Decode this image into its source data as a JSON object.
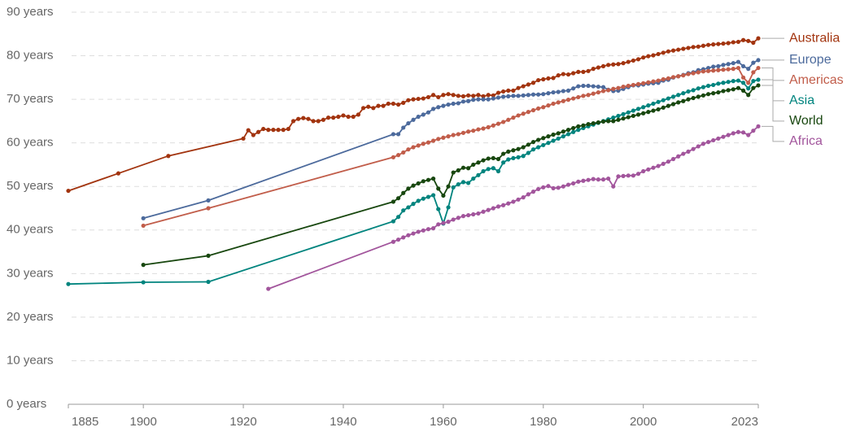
{
  "chart_data": {
    "type": "line",
    "xlim": [
      1885,
      2023
    ],
    "xticks": [
      1885,
      1900,
      1920,
      1940,
      1960,
      1980,
      2000,
      2023
    ],
    "ylim": [
      0,
      90
    ],
    "yticks": [
      {
        "value": 0,
        "label": "0 years"
      },
      {
        "value": 10,
        "label": "10 years"
      },
      {
        "value": 20,
        "label": "20 years"
      },
      {
        "value": 30,
        "label": "30 years"
      },
      {
        "value": 40,
        "label": "40 years"
      },
      {
        "value": 50,
        "label": "50 years"
      },
      {
        "value": 60,
        "label": "60 years"
      },
      {
        "value": 70,
        "label": "70 years"
      },
      {
        "value": 80,
        "label": "80 years"
      },
      {
        "value": 90,
        "label": "90 years"
      }
    ],
    "grid": true,
    "series": [
      {
        "name": "Australia",
        "color": "#a2340f",
        "x": [
          1885,
          1895,
          1905,
          1920,
          1921,
          1922,
          1923,
          1924,
          1925,
          1926,
          1927,
          1928,
          1929,
          1930,
          1931,
          1932,
          1933,
          1934,
          1935,
          1936,
          1937,
          1938,
          1939,
          1940,
          1941,
          1942,
          1943,
          1944,
          1945,
          1946,
          1947,
          1948,
          1949,
          1950,
          1951,
          1952,
          1953,
          1954,
          1955,
          1956,
          1957,
          1958,
          1959,
          1960,
          1961,
          1962,
          1963,
          1964,
          1965,
          1966,
          1967,
          1968,
          1969,
          1970,
          1971,
          1972,
          1973,
          1974,
          1975,
          1976,
          1977,
          1978,
          1979,
          1980,
          1981,
          1982,
          1983,
          1984,
          1985,
          1986,
          1987,
          1988,
          1989,
          1990,
          1991,
          1992,
          1993,
          1994,
          1995,
          1996,
          1997,
          1998,
          1999,
          2000,
          2001,
          2002,
          2003,
          2004,
          2005,
          2006,
          2007,
          2008,
          2009,
          2010,
          2011,
          2012,
          2013,
          2014,
          2015,
          2016,
          2017,
          2018,
          2019,
          2020,
          2021,
          2022,
          2023
        ],
        "values": [
          49,
          53,
          57,
          61,
          62.9,
          61.8,
          62.5,
          63.2,
          63,
          63,
          63,
          63,
          63.2,
          65,
          65.5,
          65.7,
          65.5,
          65,
          65,
          65.3,
          65.8,
          65.8,
          66,
          66.3,
          66,
          66,
          66.5,
          68,
          68.3,
          68,
          68.5,
          68.5,
          69,
          69,
          68.8,
          69.2,
          69.8,
          70,
          70.1,
          70.2,
          70.5,
          71,
          70.5,
          71,
          71.2,
          71,
          70.8,
          70.7,
          70.9,
          70.8,
          71,
          70.7,
          71,
          70.9,
          71.5,
          71.8,
          72,
          72,
          72.6,
          73,
          73.4,
          73.8,
          74.4,
          74.6,
          74.8,
          74.9,
          75.5,
          75.8,
          75.7,
          76,
          76.3,
          76.3,
          76.5,
          77,
          77.3,
          77.6,
          77.9,
          78,
          78.1,
          78.3,
          78.6,
          78.9,
          79.2,
          79.6,
          79.9,
          80.1,
          80.4,
          80.7,
          81,
          81.2,
          81.4,
          81.6,
          81.8,
          82,
          82.1,
          82.3,
          82.5,
          82.6,
          82.7,
          82.8,
          82.9,
          83.1,
          83.2,
          83.6,
          83.4,
          83,
          84
        ]
      },
      {
        "name": "Europe",
        "color": "#4c6a9c",
        "x": [
          1900,
          1913,
          1950,
          1951,
          1952,
          1953,
          1954,
          1955,
          1956,
          1957,
          1958,
          1959,
          1960,
          1961,
          1962,
          1963,
          1964,
          1965,
          1966,
          1967,
          1968,
          1969,
          1970,
          1971,
          1972,
          1973,
          1974,
          1975,
          1976,
          1977,
          1978,
          1979,
          1980,
          1981,
          1982,
          1983,
          1984,
          1985,
          1986,
          1987,
          1988,
          1989,
          1990,
          1991,
          1992,
          1993,
          1994,
          1995,
          1996,
          1997,
          1998,
          1999,
          2000,
          2001,
          2002,
          2003,
          2004,
          2005,
          2006,
          2007,
          2008,
          2009,
          2010,
          2011,
          2012,
          2013,
          2014,
          2015,
          2016,
          2017,
          2018,
          2019,
          2020,
          2021,
          2022,
          2023
        ],
        "values": [
          42.7,
          46.8,
          62,
          62,
          63.5,
          64.5,
          65.3,
          66,
          66.5,
          67,
          67.8,
          68.2,
          68.5,
          68.8,
          69,
          69.1,
          69.5,
          69.6,
          69.9,
          70,
          70,
          70,
          70.2,
          70.4,
          70.6,
          70.7,
          70.8,
          70.8,
          70.9,
          71,
          71.1,
          71.1,
          71.2,
          71.4,
          71.6,
          71.7,
          71.9,
          72,
          72.5,
          73,
          73.1,
          73.1,
          73,
          72.9,
          72.8,
          72.2,
          71.9,
          72,
          72.4,
          72.8,
          73.2,
          73.2,
          73.4,
          73.6,
          73.7,
          73.8,
          74.3,
          74.5,
          75,
          75.3,
          75.6,
          76,
          76.2,
          76.7,
          76.9,
          77.2,
          77.5,
          77.6,
          77.9,
          78.1,
          78.3,
          78.6,
          77.6,
          77,
          78.4,
          79
        ]
      },
      {
        "name": "Americas",
        "color": "#c15d4a",
        "x": [
          1900,
          1913,
          1950,
          1951,
          1952,
          1953,
          1954,
          1955,
          1956,
          1957,
          1958,
          1959,
          1960,
          1961,
          1962,
          1963,
          1964,
          1965,
          1966,
          1967,
          1968,
          1969,
          1970,
          1971,
          1972,
          1973,
          1974,
          1975,
          1976,
          1977,
          1978,
          1979,
          1980,
          1981,
          1982,
          1983,
          1984,
          1985,
          1986,
          1987,
          1988,
          1989,
          1990,
          1991,
          1992,
          1993,
          1994,
          1995,
          1996,
          1997,
          1998,
          1999,
          2000,
          2001,
          2002,
          2003,
          2004,
          2005,
          2006,
          2007,
          2008,
          2009,
          2010,
          2011,
          2012,
          2013,
          2014,
          2015,
          2016,
          2017,
          2018,
          2019,
          2020,
          2021,
          2022,
          2023
        ],
        "values": [
          41,
          45,
          56.7,
          57.2,
          57.8,
          58.5,
          59,
          59.4,
          59.8,
          60.1,
          60.5,
          60.9,
          61.2,
          61.5,
          61.8,
          62,
          62.3,
          62.6,
          62.8,
          63.1,
          63.3,
          63.6,
          64,
          64.4,
          64.8,
          65.3,
          65.8,
          66.3,
          66.7,
          67.1,
          67.5,
          67.9,
          68.2,
          68.6,
          69,
          69.3,
          69.6,
          69.9,
          70.2,
          70.5,
          70.8,
          71,
          71.3,
          71.6,
          71.9,
          72.1,
          72.4,
          72.6,
          72.9,
          73.1,
          73.3,
          73.5,
          73.7,
          73.9,
          74.1,
          74.3,
          74.6,
          74.8,
          75.1,
          75.3,
          75.5,
          75.8,
          76,
          76.2,
          76.4,
          76.5,
          76.6,
          76.7,
          76.8,
          76.9,
          77,
          77.2,
          75,
          73.8,
          76.2,
          77.2
        ]
      },
      {
        "name": "Asia",
        "color": "#00847e",
        "x": [
          1885,
          1900,
          1913,
          1950,
          1951,
          1952,
          1953,
          1954,
          1955,
          1956,
          1957,
          1958,
          1959,
          1960,
          1961,
          1962,
          1963,
          1964,
          1965,
          1966,
          1967,
          1968,
          1969,
          1970,
          1971,
          1972,
          1973,
          1974,
          1975,
          1976,
          1977,
          1978,
          1979,
          1980,
          1981,
          1982,
          1983,
          1984,
          1985,
          1986,
          1987,
          1988,
          1989,
          1990,
          1991,
          1992,
          1993,
          1994,
          1995,
          1996,
          1997,
          1998,
          1999,
          2000,
          2001,
          2002,
          2003,
          2004,
          2005,
          2006,
          2007,
          2008,
          2009,
          2010,
          2011,
          2012,
          2013,
          2014,
          2015,
          2016,
          2017,
          2018,
          2019,
          2020,
          2021,
          2022,
          2023
        ],
        "values": [
          27.6,
          28,
          28.1,
          42,
          43,
          44.5,
          45.2,
          46,
          46.7,
          47.2,
          47.6,
          48,
          44.8,
          41.5,
          45.2,
          49.8,
          50.5,
          51,
          50.8,
          51.8,
          52.6,
          53.5,
          54,
          54.2,
          53.5,
          55.5,
          56.2,
          56.5,
          56.7,
          57,
          57.7,
          58.5,
          59,
          59.5,
          60,
          60.5,
          61,
          61.5,
          62,
          62.5,
          63,
          63.4,
          63.8,
          64.2,
          64.6,
          65,
          65.4,
          65.8,
          66.2,
          66.6,
          67,
          67.4,
          67.8,
          68.2,
          68.6,
          69,
          69.4,
          69.8,
          70.2,
          70.6,
          71,
          71.4,
          71.8,
          72.1,
          72.5,
          72.8,
          73.1,
          73.3,
          73.6,
          73.8,
          74,
          74.2,
          74.3,
          73.8,
          72.5,
          74.2,
          74.5
        ]
      },
      {
        "name": "World",
        "color": "#18470f",
        "x": [
          1900,
          1913,
          1950,
          1951,
          1952,
          1953,
          1954,
          1955,
          1956,
          1957,
          1958,
          1959,
          1960,
          1961,
          1962,
          1963,
          1964,
          1965,
          1966,
          1967,
          1968,
          1969,
          1970,
          1971,
          1972,
          1973,
          1974,
          1975,
          1976,
          1977,
          1978,
          1979,
          1980,
          1981,
          1982,
          1983,
          1984,
          1985,
          1986,
          1987,
          1988,
          1989,
          1990,
          1991,
          1992,
          1993,
          1994,
          1995,
          1996,
          1997,
          1998,
          1999,
          2000,
          2001,
          2002,
          2003,
          2004,
          2005,
          2006,
          2007,
          2008,
          2009,
          2010,
          2011,
          2012,
          2013,
          2014,
          2015,
          2016,
          2017,
          2018,
          2019,
          2020,
          2021,
          2022,
          2023
        ],
        "values": [
          32,
          34.1,
          46.5,
          47.3,
          48.5,
          49.5,
          50.2,
          50.7,
          51.2,
          51.5,
          51.8,
          49.5,
          47.9,
          50,
          53.2,
          53.7,
          54.3,
          54.2,
          55,
          55.5,
          56,
          56.4,
          56.5,
          56.3,
          57.5,
          58,
          58.3,
          58.6,
          59,
          59.6,
          60.2,
          60.7,
          61.1,
          61.5,
          61.9,
          62.2,
          62.6,
          63,
          63.4,
          63.8,
          64,
          64.3,
          64.5,
          64.7,
          64.9,
          65,
          65,
          65.3,
          65.6,
          65.9,
          66.2,
          66.5,
          66.8,
          67.1,
          67.4,
          67.7,
          68.1,
          68.5,
          68.9,
          69.3,
          69.6,
          70,
          70.3,
          70.6,
          70.9,
          71.2,
          71.4,
          71.6,
          71.9,
          72.1,
          72.3,
          72.6,
          72,
          71,
          72.6,
          73.2
        ]
      },
      {
        "name": "Africa",
        "color": "#a2559c",
        "x": [
          1925,
          1950,
          1951,
          1952,
          1953,
          1954,
          1955,
          1956,
          1957,
          1958,
          1959,
          1960,
          1961,
          1962,
          1963,
          1964,
          1965,
          1966,
          1967,
          1968,
          1969,
          1970,
          1971,
          1972,
          1973,
          1974,
          1975,
          1976,
          1977,
          1978,
          1979,
          1980,
          1981,
          1982,
          1983,
          1984,
          1985,
          1986,
          1987,
          1988,
          1989,
          1990,
          1991,
          1992,
          1993,
          1994,
          1995,
          1996,
          1997,
          1998,
          1999,
          2000,
          2001,
          2002,
          2003,
          2004,
          2005,
          2006,
          2007,
          2008,
          2009,
          2010,
          2011,
          2012,
          2013,
          2014,
          2015,
          2016,
          2017,
          2018,
          2019,
          2020,
          2021,
          2022,
          2023
        ],
        "values": [
          26.5,
          37.3,
          37.8,
          38.3,
          38.8,
          39.2,
          39.6,
          39.9,
          40.2,
          40.4,
          41.3,
          41.6,
          41.9,
          42.4,
          42.8,
          43.2,
          43.4,
          43.6,
          43.8,
          44.2,
          44.6,
          45,
          45.4,
          45.7,
          46.1,
          46.5,
          47,
          47.5,
          48.2,
          48.8,
          49.4,
          49.8,
          50.1,
          49.6,
          49.7,
          50,
          50.4,
          50.7,
          51.1,
          51.3,
          51.5,
          51.7,
          51.6,
          51.6,
          51.8,
          50,
          52.3,
          52.4,
          52.5,
          52.5,
          52.9,
          53.5,
          53.9,
          54.3,
          54.7,
          55.2,
          55.7,
          56.3,
          56.9,
          57.5,
          58,
          58.6,
          59.2,
          59.8,
          60.2,
          60.6,
          61,
          61.4,
          61.8,
          62.2,
          62.5,
          62.4,
          61.8,
          62.8,
          63.8
        ]
      }
    ]
  }
}
